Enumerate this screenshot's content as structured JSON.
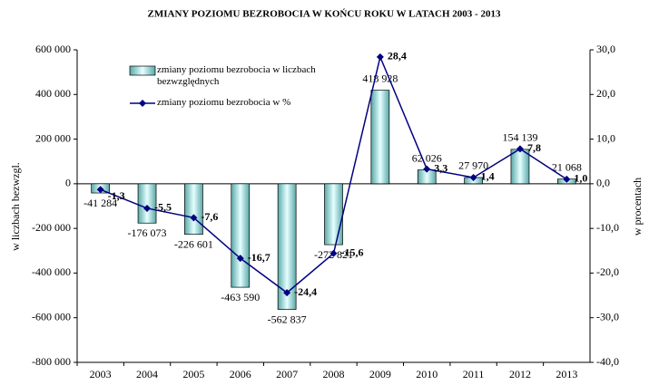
{
  "chart_data": {
    "type": "combo",
    "title": "ZMIANY POZIOMU BEZROBOCIA W  KOŃCU  ROKU   W LATACH  2003 - 2013",
    "ylabel": "w liczbach bezwzgl.",
    "y2label": "w procentach",
    "categories": [
      "2003",
      "2004",
      "2005",
      "2006",
      "2007",
      "2008",
      "2009",
      "2010",
      "2011",
      "2012",
      "2013"
    ],
    "series": [
      {
        "name": "zmiany poziomu bezrobocia w liczbach bezwzględnych",
        "type": "bar",
        "color": "#a8dede",
        "values": [
          -41284,
          -176073,
          -226601,
          -463590,
          -562837,
          -272821,
          418928,
          62026,
          27970,
          154139,
          21068
        ],
        "value_labels": [
          "-41 284",
          "-176 073",
          "-226 601",
          "-463 590",
          "-562 837",
          "-272 821",
          "418 928",
          "62 026",
          "27 970",
          "154 139",
          "21 068"
        ]
      },
      {
        "name": "zmiany poziomu bezrobocia w %",
        "type": "line",
        "axis": "y2",
        "color": "#000080",
        "values": [
          -1.3,
          -5.5,
          -7.6,
          -16.7,
          -24.4,
          -15.6,
          28.4,
          3.3,
          1.4,
          7.8,
          1.0
        ],
        "value_labels": [
          "-1,3",
          "-5,5",
          "-7,6",
          "-16,7",
          "-24,4",
          "-15,6",
          "28,4",
          "3,3",
          "1,4",
          "7,8",
          "1,0"
        ]
      }
    ],
    "ylim": [
      -800000,
      600000
    ],
    "yticks": [
      {
        "value": -800000,
        "label": "-800 000"
      },
      {
        "value": -600000,
        "label": "-600 000"
      },
      {
        "value": -400000,
        "label": "-400 000"
      },
      {
        "value": -200000,
        "label": "-200 000"
      },
      0,
      {
        "value": 200000,
        "label": "200 000"
      },
      {
        "value": 400000,
        "label": "400 000"
      },
      {
        "value": 600000,
        "label": "600 000"
      }
    ],
    "y2lim": [
      -40,
      30
    ],
    "y2ticks": [
      {
        "value": -40,
        "label": "-40,0"
      },
      {
        "value": -30,
        "label": "-30,0"
      },
      {
        "value": -20,
        "label": "-20,0"
      },
      {
        "value": -10,
        "label": "-10,0"
      },
      {
        "value": 0,
        "label": "0,0"
      },
      {
        "value": 10,
        "label": "10,0"
      },
      {
        "value": 20,
        "label": "20,0"
      },
      {
        "value": 30,
        "label": "30,0"
      }
    ],
    "grid": false
  }
}
